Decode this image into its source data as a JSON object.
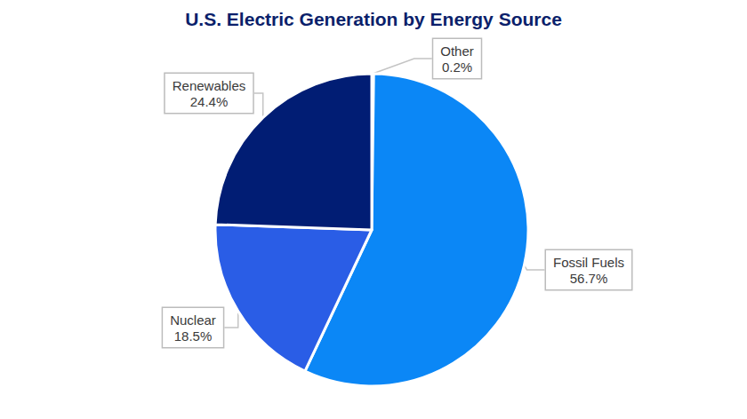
{
  "chart_data": {
    "type": "pie",
    "title": "U.S. Electric Generation by Energy Source",
    "categories": [
      "Other",
      "Fossil Fuels",
      "Nuclear",
      "Renewables"
    ],
    "values": [
      0.2,
      56.7,
      18.5,
      24.4
    ],
    "value_labels": [
      "0.2%",
      "56.7%",
      "18.5%",
      "24.4%"
    ],
    "colors": [
      "#8cc3f5",
      "#0b87f6",
      "#2a5de6",
      "#011d74"
    ],
    "data_labels": true
  }
}
